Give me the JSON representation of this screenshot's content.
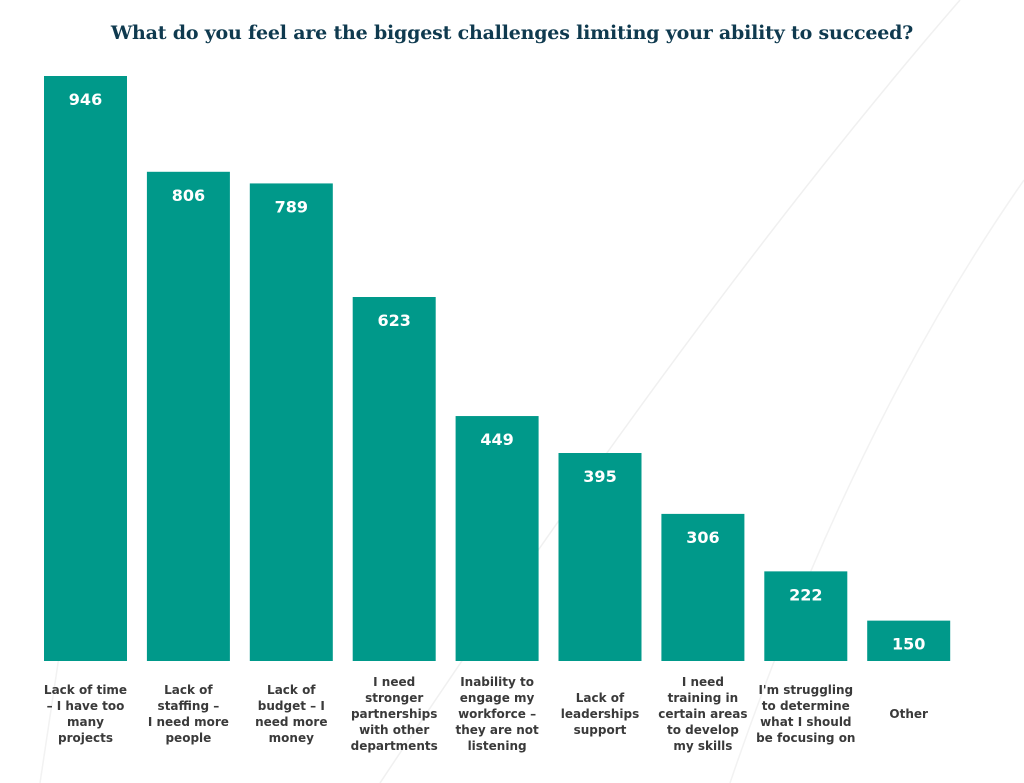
{
  "chart_data": {
    "type": "bar",
    "title": "What do you feel are the biggest challenges limiting your ability to succeed?",
    "categories": [
      "Lack of time\n– I have too\nmany\nprojects",
      "Lack of\nstaffing –\nI need more\npeople",
      "Lack of\nbudget – I\nneed more\nmoney",
      "I need\nstronger\npartnerships\nwith other\ndepartments",
      "Inability to\nengage my\nworkforce –\nthey are not\nlistening",
      "Lack of\nleaderships\nsupport",
      "I need\ntraining in\ncertain areas\nto develop\nmy skills",
      "I'm struggling\nto determine\nwhat I should\nbe focusing on",
      "Other"
    ],
    "values": [
      946,
      806,
      789,
      623,
      449,
      395,
      306,
      222,
      150
    ],
    "value_labels": [
      "946",
      "806",
      "789",
      "623",
      "449",
      "395",
      "306",
      "222",
      "150"
    ],
    "xlabel": "",
    "ylabel": "",
    "ylim": [
      91,
      946
    ],
    "grid": false,
    "bar_color": "#00998a",
    "title_color": "#0f3a4f"
  }
}
